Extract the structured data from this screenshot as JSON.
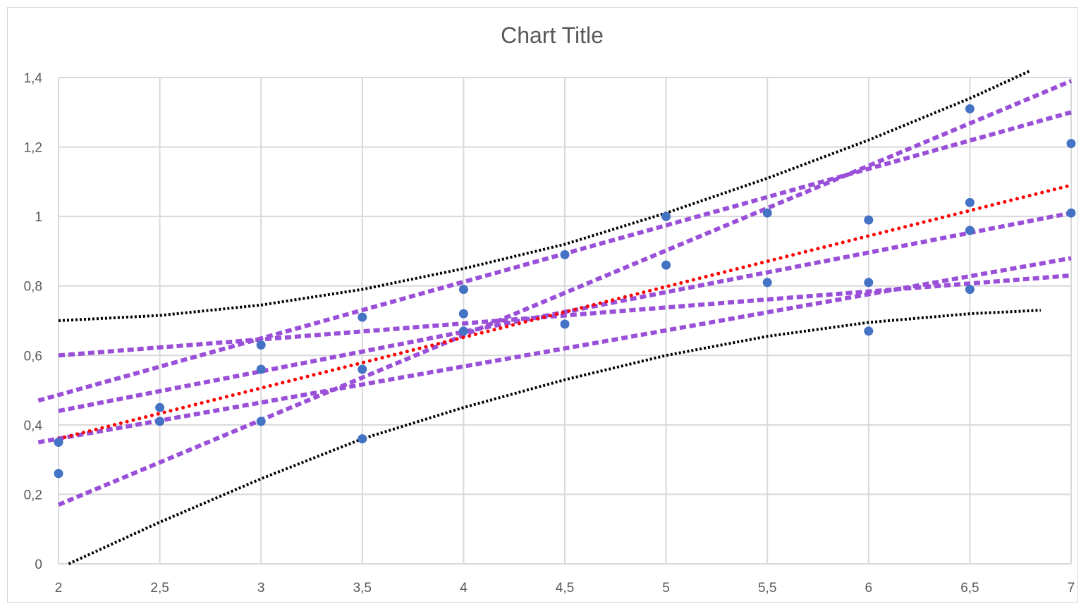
{
  "chart_data": {
    "type": "scatter",
    "title": "Chart Title",
    "xlabel": "",
    "ylabel": "",
    "xlim": [
      2,
      7
    ],
    "ylim": [
      0,
      1.4
    ],
    "x_ticks": [
      "2",
      "2,5",
      "3",
      "3,5",
      "4",
      "4,5",
      "5",
      "5,5",
      "6",
      "6,5",
      "7"
    ],
    "y_ticks": [
      "0",
      "0,2",
      "0,4",
      "0,6",
      "0,8",
      "1",
      "1,2",
      "1,4"
    ],
    "grid": true,
    "legend": "none",
    "points": {
      "color": "#4472c4",
      "x": [
        2,
        2,
        2.5,
        2.5,
        3,
        3,
        3,
        3.5,
        3.5,
        3.5,
        4,
        4,
        4,
        4.5,
        4.5,
        5,
        5,
        5.5,
        5.5,
        6,
        6,
        6,
        6.5,
        6.5,
        6.5,
        6.5,
        7,
        7
      ],
      "y": [
        0.35,
        0.26,
        0.45,
        0.41,
        0.63,
        0.56,
        0.41,
        0.71,
        0.56,
        0.36,
        0.79,
        0.72,
        0.67,
        0.89,
        0.69,
        1.0,
        0.86,
        1.01,
        0.81,
        0.99,
        0.81,
        0.67,
        1.31,
        1.04,
        0.96,
        0.79,
        1.21,
        1.01
      ]
    },
    "fit_line": {
      "color": "#ff0000",
      "x": [
        2,
        7
      ],
      "y": [
        0.36,
        1.09
      ]
    },
    "bootstrap_lines": {
      "color": "#9a4fd8",
      "lines": [
        {
          "x": [
            2,
            7
          ],
          "y": [
            0.17,
            1.39
          ]
        },
        {
          "x": [
            1.9,
            7
          ],
          "y": [
            0.47,
            1.3
          ]
        },
        {
          "x": [
            2,
            7
          ],
          "y": [
            0.44,
            1.01
          ]
        },
        {
          "x": [
            2,
            7
          ],
          "y": [
            0.6,
            0.83
          ]
        },
        {
          "x": [
            1.9,
            7
          ],
          "y": [
            0.35,
            0.88
          ]
        }
      ]
    },
    "confidence_band": {
      "color": "#000000",
      "upper": {
        "x": [
          2,
          2.5,
          3,
          3.5,
          4,
          4.5,
          5,
          5.5,
          6,
          6.5,
          6.8
        ],
        "y": [
          0.7,
          0.715,
          0.745,
          0.79,
          0.85,
          0.92,
          1.01,
          1.11,
          1.22,
          1.34,
          1.42
        ]
      },
      "lower": {
        "x": [
          2.05,
          2.5,
          3,
          3.5,
          4,
          4.5,
          5,
          5.5,
          6,
          6.5,
          6.85
        ],
        "y": [
          0.0,
          0.12,
          0.245,
          0.36,
          0.45,
          0.53,
          0.6,
          0.655,
          0.695,
          0.72,
          0.73
        ]
      }
    }
  }
}
